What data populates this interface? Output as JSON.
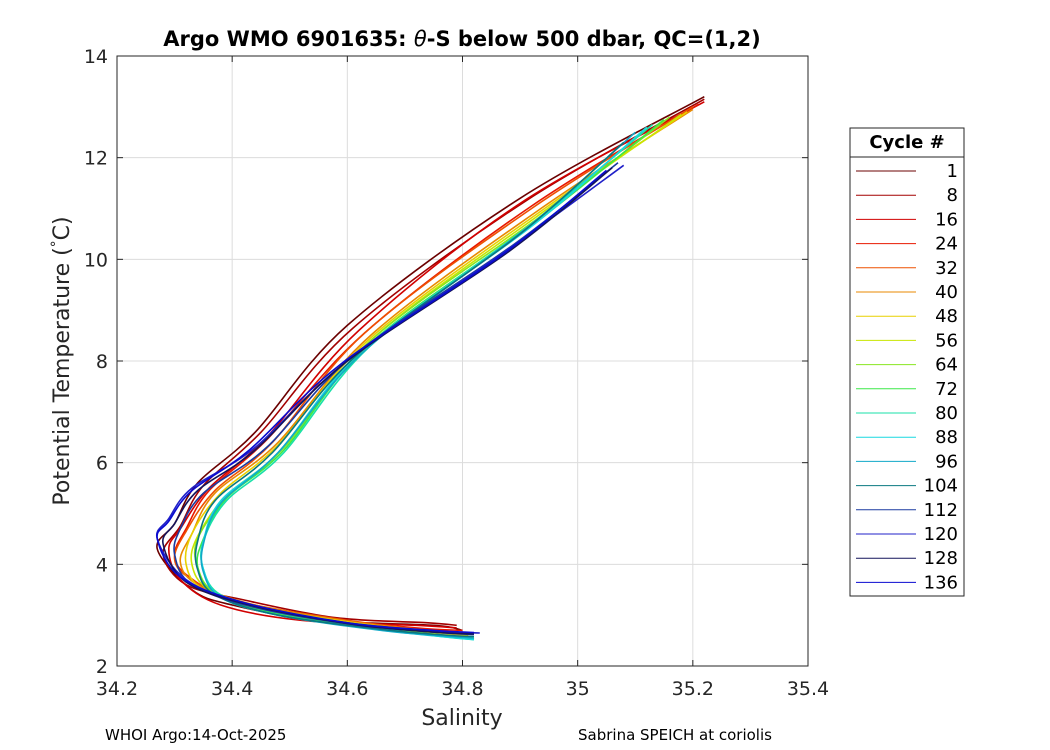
{
  "chart_data": {
    "type": "line",
    "title": "Argo WMO 6901635: θ-S below 500 dbar,  QC=(1,2)",
    "title_parts": {
      "prefix": "Argo WMO 6901635: ",
      "symbol": "θ",
      "suffix": "-S below 500 dbar,  QC=(1,2)"
    },
    "xlabel": "Salinity",
    "ylabel": "Potential Temperature (°C)",
    "ylabel_parts": {
      "text": "Potential Temperature (",
      "degree": "°",
      "unit": "C)"
    },
    "xlim": [
      34.2,
      35.4
    ],
    "ylim": [
      2,
      14
    ],
    "x_ticks": [
      34.2,
      34.4,
      34.6,
      34.8,
      35.0,
      35.2,
      35.4
    ],
    "x_tick_labels": [
      "34.2",
      "34.4",
      "34.6",
      "34.8",
      "35",
      "35.2",
      "35.4"
    ],
    "y_ticks": [
      2,
      4,
      6,
      8,
      10,
      12,
      14
    ],
    "y_tick_labels": [
      "2",
      "4",
      "6",
      "8",
      "10",
      "12",
      "14"
    ],
    "grid": true,
    "legend_placement": "outside-right",
    "legend_title": "Cycle #",
    "series": [
      {
        "name": "1",
        "color": "#6b0000",
        "s": [
          35.22,
          34.9,
          34.6,
          34.44,
          34.34,
          34.3,
          34.27,
          34.33,
          34.4,
          34.55,
          34.75,
          34.8
        ],
        "t": [
          13.2,
          11.2,
          8.7,
          6.6,
          5.6,
          4.8,
          4.3,
          3.5,
          3.2,
          2.9,
          2.8,
          2.7
        ]
      },
      {
        "name": "8",
        "color": "#a30000",
        "s": [
          35.22,
          34.91,
          34.61,
          34.45,
          34.35,
          34.31,
          34.28,
          34.32,
          34.42,
          34.58,
          34.74,
          34.79
        ],
        "t": [
          13.15,
          11.15,
          8.65,
          6.6,
          5.55,
          4.75,
          4.2,
          3.6,
          3.3,
          2.95,
          2.85,
          2.8
        ]
      },
      {
        "name": "16",
        "color": "#d10000",
        "s": [
          35.22,
          34.9,
          34.62,
          34.46,
          34.36,
          34.31,
          34.29,
          34.31,
          34.38,
          34.52,
          34.72,
          34.79
        ],
        "t": [
          13.1,
          11.1,
          8.6,
          6.5,
          5.5,
          4.7,
          4.3,
          3.7,
          3.2,
          2.9,
          2.8,
          2.75
        ]
      },
      {
        "name": "24",
        "color": "#e81800",
        "s": [
          35.21,
          34.92,
          34.63,
          34.46,
          34.36,
          34.32,
          34.3,
          34.32,
          34.4,
          34.55,
          34.72,
          34.8
        ],
        "t": [
          13.05,
          11.05,
          8.55,
          6.45,
          5.45,
          4.7,
          4.2,
          3.8,
          3.3,
          2.95,
          2.75,
          2.7
        ]
      },
      {
        "name": "32",
        "color": "#ee5000",
        "s": [
          35.2,
          34.92,
          34.63,
          34.47,
          34.37,
          34.32,
          34.3,
          34.33,
          34.42,
          34.6,
          34.74,
          34.8
        ],
        "t": [
          13.0,
          11.0,
          8.55,
          6.4,
          5.45,
          4.65,
          4.1,
          3.7,
          3.25,
          2.9,
          2.7,
          2.65
        ]
      },
      {
        "name": "40",
        "color": "#e88a00",
        "s": [
          35.2,
          34.93,
          34.64,
          34.48,
          34.37,
          34.33,
          34.31,
          34.34,
          34.44,
          34.62,
          34.76,
          34.81
        ],
        "t": [
          12.95,
          10.95,
          8.5,
          6.4,
          5.4,
          4.6,
          4.05,
          3.6,
          3.2,
          2.85,
          2.68,
          2.62
        ]
      },
      {
        "name": "48",
        "color": "#e8d000",
        "s": [
          35.19,
          34.93,
          34.64,
          34.48,
          34.38,
          34.33,
          34.32,
          34.35,
          34.45,
          34.63,
          34.76,
          34.81
        ],
        "t": [
          12.9,
          10.9,
          8.45,
          6.35,
          5.4,
          4.6,
          4.0,
          3.5,
          3.15,
          2.82,
          2.65,
          2.6
        ]
      },
      {
        "name": "56",
        "color": "#c8e600",
        "s": [
          35.18,
          34.93,
          34.64,
          34.49,
          34.39,
          34.34,
          34.33,
          34.36,
          34.46,
          34.63,
          34.76,
          34.81
        ],
        "t": [
          12.85,
          10.85,
          8.4,
          6.3,
          5.35,
          4.55,
          4.0,
          3.5,
          3.1,
          2.8,
          2.62,
          2.57
        ]
      },
      {
        "name": "64",
        "color": "#88e620",
        "s": [
          35.16,
          34.93,
          34.64,
          34.49,
          34.39,
          34.34,
          34.34,
          34.37,
          34.47,
          34.64,
          34.77,
          34.82
        ],
        "t": [
          12.8,
          10.8,
          8.4,
          6.3,
          5.3,
          4.5,
          3.95,
          3.45,
          3.1,
          2.78,
          2.6,
          2.55
        ]
      },
      {
        "name": "72",
        "color": "#3ce848",
        "s": [
          35.15,
          34.93,
          34.64,
          34.49,
          34.39,
          34.35,
          34.34,
          34.37,
          34.47,
          34.64,
          34.77,
          34.82
        ],
        "t": [
          12.75,
          10.75,
          8.35,
          6.25,
          5.3,
          4.5,
          3.95,
          3.4,
          3.05,
          2.75,
          2.58,
          2.53
        ]
      },
      {
        "name": "80",
        "color": "#18e0a8",
        "s": [
          35.13,
          34.92,
          34.64,
          34.49,
          34.39,
          34.35,
          34.35,
          34.38,
          34.48,
          34.65,
          34.77,
          34.82
        ],
        "t": [
          12.65,
          10.7,
          8.3,
          6.2,
          5.25,
          4.45,
          3.9,
          3.4,
          3.05,
          2.75,
          2.57,
          2.52
        ]
      },
      {
        "name": "88",
        "color": "#18d8e0",
        "s": [
          35.12,
          34.92,
          34.63,
          34.48,
          34.38,
          34.35,
          34.35,
          34.38,
          34.48,
          34.65,
          34.78,
          34.82
        ],
        "t": [
          12.6,
          10.65,
          8.25,
          6.2,
          5.25,
          4.45,
          3.9,
          3.35,
          3.0,
          2.72,
          2.56,
          2.52
        ]
      },
      {
        "name": "96",
        "color": "#10a8c8",
        "s": [
          35.1,
          34.91,
          34.63,
          34.48,
          34.38,
          34.35,
          34.35,
          34.38,
          34.48,
          34.66,
          34.78,
          34.82
        ],
        "t": [
          12.5,
          10.6,
          8.2,
          6.2,
          5.2,
          4.4,
          3.85,
          3.35,
          3.0,
          2.7,
          2.58,
          2.55
        ]
      },
      {
        "name": "104",
        "color": "#0a7880",
        "s": [
          35.08,
          34.9,
          34.62,
          34.47,
          34.37,
          34.34,
          34.34,
          34.37,
          34.48,
          34.66,
          34.78,
          34.82
        ],
        "t": [
          12.3,
          10.5,
          8.15,
          6.2,
          5.25,
          4.45,
          3.9,
          3.4,
          3.0,
          2.72,
          2.6,
          2.58
        ]
      },
      {
        "name": "112",
        "color": "#1a3aa0",
        "s": [
          35.07,
          34.89,
          34.61,
          34.46,
          34.35,
          34.31,
          34.3,
          34.33,
          34.44,
          34.62,
          34.77,
          34.82
        ],
        "t": [
          11.9,
          10.3,
          8.1,
          6.3,
          5.4,
          4.7,
          4.2,
          3.6,
          3.15,
          2.8,
          2.65,
          2.62
        ]
      },
      {
        "name": "120",
        "color": "#2020c8",
        "s": [
          35.08,
          34.88,
          34.6,
          34.44,
          34.33,
          34.29,
          34.27,
          34.32,
          34.43,
          34.6,
          34.76,
          34.83
        ],
        "t": [
          11.85,
          10.2,
          8.0,
          6.3,
          5.5,
          4.9,
          4.5,
          3.7,
          3.2,
          2.85,
          2.68,
          2.65
        ]
      },
      {
        "name": "128",
        "color": "#14145a",
        "s": [
          35.06,
          34.88,
          34.6,
          34.44,
          34.34,
          34.3,
          34.28,
          34.32,
          34.43,
          34.61,
          34.76,
          34.82
        ],
        "t": [
          11.8,
          10.15,
          8.0,
          6.25,
          5.45,
          4.8,
          4.4,
          3.65,
          3.2,
          2.82,
          2.66,
          2.63
        ]
      },
      {
        "name": "136",
        "color": "#0a0ad0",
        "s": [
          35.05,
          34.87,
          34.59,
          34.43,
          34.33,
          34.29,
          34.27,
          34.31,
          34.42,
          34.6,
          34.75,
          34.82
        ],
        "t": [
          11.75,
          10.1,
          7.95,
          6.25,
          5.45,
          4.85,
          4.5,
          3.75,
          3.25,
          2.85,
          2.7,
          2.66
        ]
      }
    ]
  },
  "footer": {
    "left": "WHOI Argo:14-Oct-2025",
    "right": "Sabrina SPEICH at coriolis"
  }
}
